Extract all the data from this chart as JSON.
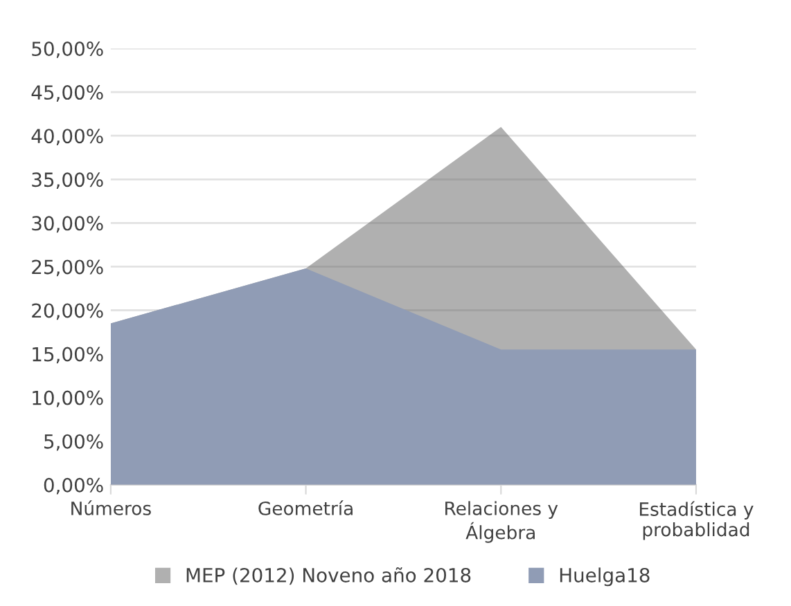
{
  "chart_data": {
    "type": "area",
    "categories": [
      "Números",
      "Geometría",
      "Relaciones y\nÁlgebra",
      "Estadística y\nprobablidad"
    ],
    "series": [
      {
        "name": "MEP (2012) Noveno año 2018",
        "color": "#b0b0b0",
        "values": [
          18.5,
          24.8,
          41,
          15.5
        ]
      },
      {
        "name": "Huelga18",
        "color": "#909cb5",
        "values": [
          18.5,
          24.8,
          15.5,
          15.5
        ]
      }
    ],
    "ylim": [
      0,
      50
    ],
    "yticks": [
      {
        "value": 0,
        "label": "0,00%"
      },
      {
        "value": 5,
        "label": "5,00%"
      },
      {
        "value": 10,
        "label": "10,00%"
      },
      {
        "value": 15,
        "label": "15,00%"
      },
      {
        "value": 20,
        "label": "20,00%"
      },
      {
        "value": 25,
        "label": "25,00%"
      },
      {
        "value": 30,
        "label": "30,00%"
      },
      {
        "value": 35,
        "label": "35,00%"
      },
      {
        "value": 40,
        "label": "40,00%"
      },
      {
        "value": 45,
        "label": "45,00%"
      },
      {
        "value": 50,
        "label": "50,00%"
      }
    ],
    "grid": "y",
    "legend": "bottom"
  }
}
